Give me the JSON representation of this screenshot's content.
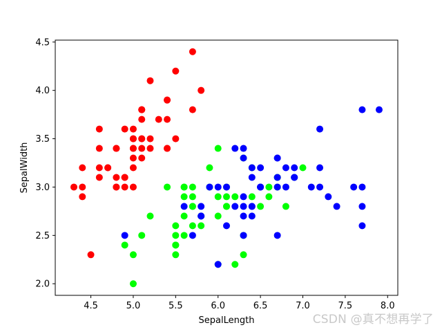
{
  "chart_data": {
    "type": "scatter",
    "title": "",
    "xlabel": "SepalLength",
    "ylabel": "SepalWidth",
    "xlim": [
      4.08,
      8.12
    ],
    "ylim": [
      1.88,
      4.52
    ],
    "xticks": [
      4.5,
      5.0,
      5.5,
      6.0,
      6.5,
      7.0,
      7.5,
      8.0
    ],
    "yticks": [
      2.0,
      2.5,
      3.0,
      3.5,
      4.0,
      4.5
    ],
    "xtick_labels": [
      "4.5",
      "5.0",
      "5.5",
      "6.0",
      "6.5",
      "7.0",
      "7.5",
      "8.0"
    ],
    "ytick_labels": [
      "2.0",
      "2.5",
      "3.0",
      "3.5",
      "4.0",
      "4.5"
    ],
    "grid": false,
    "legend": "none",
    "series": [
      {
        "color": "#ff0000",
        "points": [
          [
            5.1,
            3.5
          ],
          [
            4.9,
            3.0
          ],
          [
            4.7,
            3.2
          ],
          [
            4.6,
            3.1
          ],
          [
            5.0,
            3.6
          ],
          [
            5.4,
            3.9
          ],
          [
            4.6,
            3.4
          ],
          [
            5.0,
            3.4
          ],
          [
            4.4,
            2.9
          ],
          [
            4.9,
            3.1
          ],
          [
            5.4,
            3.7
          ],
          [
            4.8,
            3.4
          ],
          [
            4.8,
            3.0
          ],
          [
            4.3,
            3.0
          ],
          [
            5.8,
            4.0
          ],
          [
            5.7,
            4.4
          ],
          [
            5.4,
            3.9
          ],
          [
            5.1,
            3.5
          ],
          [
            5.7,
            3.8
          ],
          [
            5.1,
            3.8
          ],
          [
            5.4,
            3.4
          ],
          [
            5.1,
            3.7
          ],
          [
            4.6,
            3.6
          ],
          [
            5.1,
            3.3
          ],
          [
            4.8,
            3.4
          ],
          [
            5.0,
            3.0
          ],
          [
            5.0,
            3.4
          ],
          [
            5.2,
            3.5
          ],
          [
            5.2,
            3.4
          ],
          [
            4.7,
            3.2
          ],
          [
            4.8,
            3.1
          ],
          [
            5.4,
            3.4
          ],
          [
            5.2,
            4.1
          ],
          [
            5.5,
            4.2
          ],
          [
            4.9,
            3.1
          ],
          [
            5.0,
            3.2
          ],
          [
            5.5,
            3.5
          ],
          [
            4.9,
            3.6
          ],
          [
            4.4,
            3.0
          ],
          [
            5.1,
            3.4
          ],
          [
            5.0,
            3.5
          ],
          [
            4.5,
            2.3
          ],
          [
            4.4,
            3.2
          ],
          [
            5.0,
            3.5
          ],
          [
            5.1,
            3.8
          ],
          [
            4.8,
            3.0
          ],
          [
            5.1,
            3.8
          ],
          [
            4.6,
            3.2
          ],
          [
            5.3,
            3.7
          ],
          [
            5.0,
            3.3
          ]
        ]
      },
      {
        "color": "#00ff00",
        "points": [
          [
            7.0,
            3.2
          ],
          [
            6.4,
            3.2
          ],
          [
            6.9,
            3.1
          ],
          [
            5.5,
            2.3
          ],
          [
            6.5,
            2.8
          ],
          [
            5.7,
            2.8
          ],
          [
            6.3,
            3.3
          ],
          [
            4.9,
            2.4
          ],
          [
            6.6,
            2.9
          ],
          [
            5.2,
            2.7
          ],
          [
            5.0,
            2.0
          ],
          [
            5.9,
            3.0
          ],
          [
            6.0,
            2.2
          ],
          [
            6.1,
            2.9
          ],
          [
            5.6,
            2.9
          ],
          [
            6.7,
            3.1
          ],
          [
            5.6,
            3.0
          ],
          [
            5.8,
            2.7
          ],
          [
            6.2,
            2.2
          ],
          [
            5.6,
            2.5
          ],
          [
            5.9,
            3.2
          ],
          [
            6.1,
            2.8
          ],
          [
            6.3,
            2.5
          ],
          [
            6.1,
            2.8
          ],
          [
            6.4,
            2.9
          ],
          [
            6.6,
            3.0
          ],
          [
            6.8,
            2.8
          ],
          [
            6.7,
            3.0
          ],
          [
            6.0,
            2.9
          ],
          [
            5.7,
            2.6
          ],
          [
            5.5,
            2.4
          ],
          [
            5.5,
            2.4
          ],
          [
            5.8,
            2.7
          ],
          [
            6.0,
            2.7
          ],
          [
            5.4,
            3.0
          ],
          [
            6.0,
            3.4
          ],
          [
            6.7,
            3.1
          ],
          [
            6.3,
            2.3
          ],
          [
            5.6,
            3.0
          ],
          [
            5.5,
            2.5
          ],
          [
            5.5,
            2.6
          ],
          [
            6.1,
            3.0
          ],
          [
            5.8,
            2.6
          ],
          [
            5.0,
            2.3
          ],
          [
            5.6,
            2.7
          ],
          [
            5.7,
            3.0
          ],
          [
            5.7,
            2.9
          ],
          [
            6.2,
            2.9
          ],
          [
            5.1,
            2.5
          ],
          [
            5.7,
            2.8
          ]
        ]
      },
      {
        "color": "#0000ff",
        "points": [
          [
            6.3,
            3.3
          ],
          [
            5.8,
            2.7
          ],
          [
            7.1,
            3.0
          ],
          [
            6.3,
            2.9
          ],
          [
            6.5,
            3.0
          ],
          [
            7.6,
            3.0
          ],
          [
            4.9,
            2.5
          ],
          [
            7.3,
            2.9
          ],
          [
            6.7,
            2.5
          ],
          [
            7.2,
            3.6
          ],
          [
            6.5,
            3.2
          ],
          [
            6.4,
            2.7
          ],
          [
            6.8,
            3.0
          ],
          [
            5.7,
            2.5
          ],
          [
            5.8,
            2.8
          ],
          [
            6.4,
            3.2
          ],
          [
            6.5,
            3.0
          ],
          [
            7.7,
            3.8
          ],
          [
            7.7,
            2.6
          ],
          [
            6.0,
            2.2
          ],
          [
            6.9,
            3.2
          ],
          [
            5.6,
            2.8
          ],
          [
            7.7,
            2.8
          ],
          [
            6.3,
            2.7
          ],
          [
            6.7,
            3.3
          ],
          [
            7.2,
            3.2
          ],
          [
            6.2,
            2.8
          ],
          [
            6.1,
            3.0
          ],
          [
            6.4,
            2.8
          ],
          [
            7.2,
            3.0
          ],
          [
            7.4,
            2.8
          ],
          [
            7.9,
            3.8
          ],
          [
            6.4,
            2.8
          ],
          [
            6.3,
            2.8
          ],
          [
            6.1,
            2.6
          ],
          [
            7.7,
            3.0
          ],
          [
            6.3,
            3.4
          ],
          [
            6.4,
            3.1
          ],
          [
            6.0,
            3.0
          ],
          [
            6.9,
            3.1
          ],
          [
            6.7,
            3.1
          ],
          [
            6.9,
            3.1
          ],
          [
            5.8,
            2.7
          ],
          [
            6.8,
            3.2
          ],
          [
            6.7,
            3.3
          ],
          [
            6.7,
            3.0
          ],
          [
            6.3,
            2.5
          ],
          [
            6.5,
            3.0
          ],
          [
            6.2,
            3.4
          ],
          [
            5.9,
            3.0
          ]
        ]
      }
    ]
  },
  "watermark": "CSDN @真不想再学了"
}
